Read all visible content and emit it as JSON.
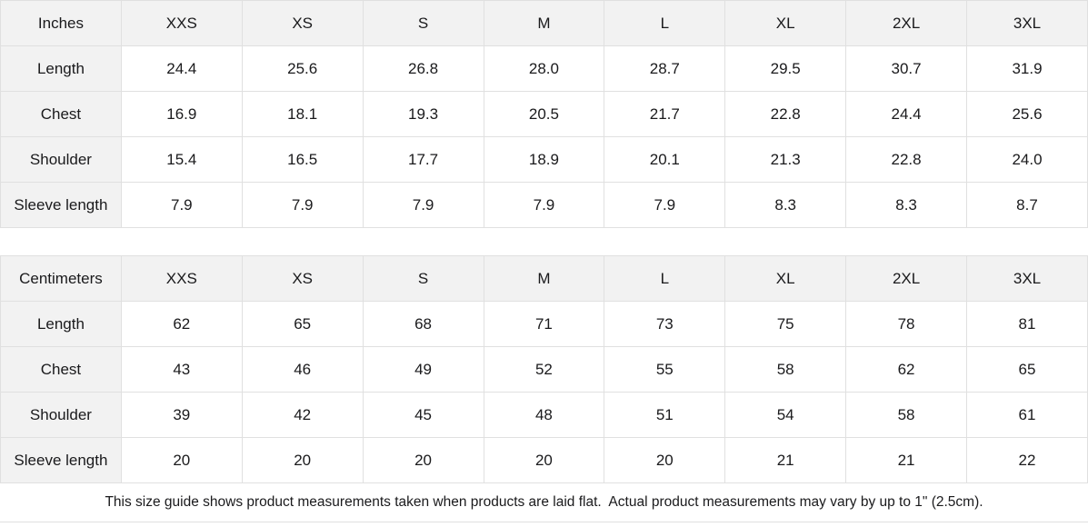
{
  "colors": {
    "header_bg": "#f2f2f2",
    "border": "#e0e0e0",
    "text": "#1a1a1c",
    "background": "#ffffff"
  },
  "tables": [
    {
      "unit_label": "Inches",
      "sizes": [
        "XXS",
        "XS",
        "S",
        "M",
        "L",
        "XL",
        "2XL",
        "3XL"
      ],
      "rows": [
        {
          "label": "Length",
          "values": [
            "24.4",
            "25.6",
            "26.8",
            "28.0",
            "28.7",
            "29.5",
            "30.7",
            "31.9"
          ]
        },
        {
          "label": "Chest",
          "values": [
            "16.9",
            "18.1",
            "19.3",
            "20.5",
            "21.7",
            "22.8",
            "24.4",
            "25.6"
          ]
        },
        {
          "label": "Shoulder",
          "values": [
            "15.4",
            "16.5",
            "17.7",
            "18.9",
            "20.1",
            "21.3",
            "22.8",
            "24.0"
          ]
        },
        {
          "label": "Sleeve length",
          "values": [
            "7.9",
            "7.9",
            "7.9",
            "7.9",
            "7.9",
            "8.3",
            "8.3",
            "8.7"
          ]
        }
      ]
    },
    {
      "unit_label": "Centimeters",
      "sizes": [
        "XXS",
        "XS",
        "S",
        "M",
        "L",
        "XL",
        "2XL",
        "3XL"
      ],
      "rows": [
        {
          "label": "Length",
          "values": [
            "62",
            "65",
            "68",
            "71",
            "73",
            "75",
            "78",
            "81"
          ]
        },
        {
          "label": "Chest",
          "values": [
            "43",
            "46",
            "49",
            "52",
            "55",
            "58",
            "62",
            "65"
          ]
        },
        {
          "label": "Shoulder",
          "values": [
            "39",
            "42",
            "45",
            "48",
            "51",
            "54",
            "58",
            "61"
          ]
        },
        {
          "label": "Sleeve length",
          "values": [
            "20",
            "20",
            "20",
            "20",
            "20",
            "21",
            "21",
            "22"
          ]
        }
      ]
    }
  ],
  "footer": {
    "note": "This size guide shows product measurements taken when products are laid flat.  Actual product measurements may vary by up to 1\" (2.5cm)."
  }
}
